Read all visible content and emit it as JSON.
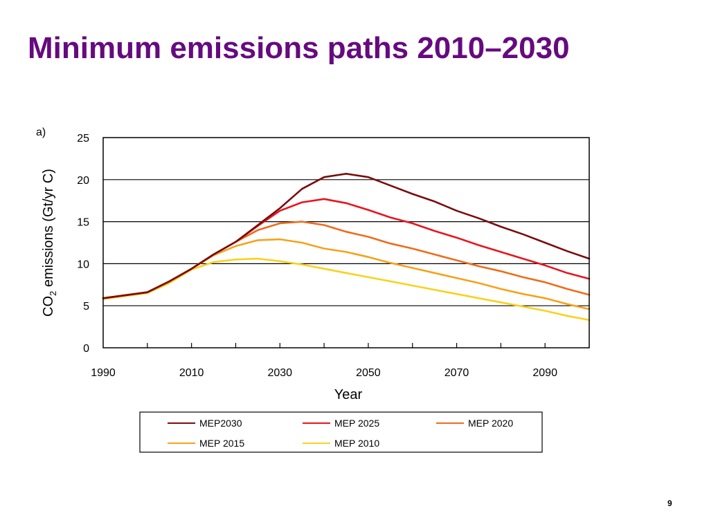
{
  "slide": {
    "title": "Minimum emissions paths 2010–2030",
    "panel_label": "a)",
    "page_number": "9"
  },
  "chart_data": {
    "type": "line",
    "xlabel": "Year",
    "ylabel_main": "CO",
    "ylabel_sub": "2",
    "ylabel_rest": " emissions (Gt/yr C)",
    "xlim": [
      1990,
      2100
    ],
    "ylim": [
      0,
      25
    ],
    "x_ticks": [
      1990,
      2010,
      2030,
      2050,
      2070,
      2090
    ],
    "y_ticks": [
      0,
      5,
      10,
      15,
      20,
      25
    ],
    "grid": "horizontal",
    "legend_position": "bottom",
    "x": [
      1990,
      2000,
      2005,
      2010,
      2015,
      2020,
      2025,
      2030,
      2035,
      2040,
      2045,
      2050,
      2055,
      2060,
      2065,
      2070,
      2075,
      2080,
      2085,
      2090,
      2095,
      2100
    ],
    "series": [
      {
        "name": "MEP2030",
        "color": "#7a0c0c",
        "values": [
          5.9,
          6.6,
          7.9,
          9.4,
          11.1,
          12.6,
          14.6,
          16.6,
          18.9,
          20.3,
          20.7,
          20.3,
          19.3,
          18.3,
          17.4,
          16.3,
          15.4,
          14.4,
          13.5,
          12.5,
          11.5,
          10.6
        ]
      },
      {
        "name": "MEP 2025",
        "color": "#e8141e",
        "values": [
          5.9,
          6.6,
          7.9,
          9.4,
          11.1,
          12.6,
          14.5,
          16.3,
          17.3,
          17.7,
          17.2,
          16.4,
          15.5,
          14.8,
          13.9,
          13.1,
          12.2,
          11.4,
          10.6,
          9.8,
          8.9,
          8.2
        ]
      },
      {
        "name": "MEP 2020",
        "color": "#ee6c1c",
        "values": [
          5.9,
          6.6,
          7.9,
          9.4,
          11.1,
          12.6,
          14.0,
          14.8,
          15.0,
          14.6,
          13.8,
          13.2,
          12.4,
          11.8,
          11.1,
          10.4,
          9.7,
          9.1,
          8.4,
          7.8,
          7.0,
          6.3
        ]
      },
      {
        "name": "MEP 2015",
        "color": "#f5a21a",
        "values": [
          5.9,
          6.6,
          7.9,
          9.4,
          11.0,
          12.1,
          12.8,
          12.9,
          12.5,
          11.8,
          11.4,
          10.8,
          10.1,
          9.5,
          8.9,
          8.3,
          7.7,
          7.0,
          6.4,
          5.9,
          5.2,
          4.6
        ]
      },
      {
        "name": "MEP 2010",
        "color": "#f8d21c",
        "values": [
          5.8,
          6.5,
          7.7,
          9.3,
          10.2,
          10.5,
          10.6,
          10.3,
          9.9,
          9.4,
          8.9,
          8.4,
          7.9,
          7.4,
          6.9,
          6.4,
          5.9,
          5.4,
          4.9,
          4.4,
          3.8,
          3.3
        ]
      }
    ]
  }
}
